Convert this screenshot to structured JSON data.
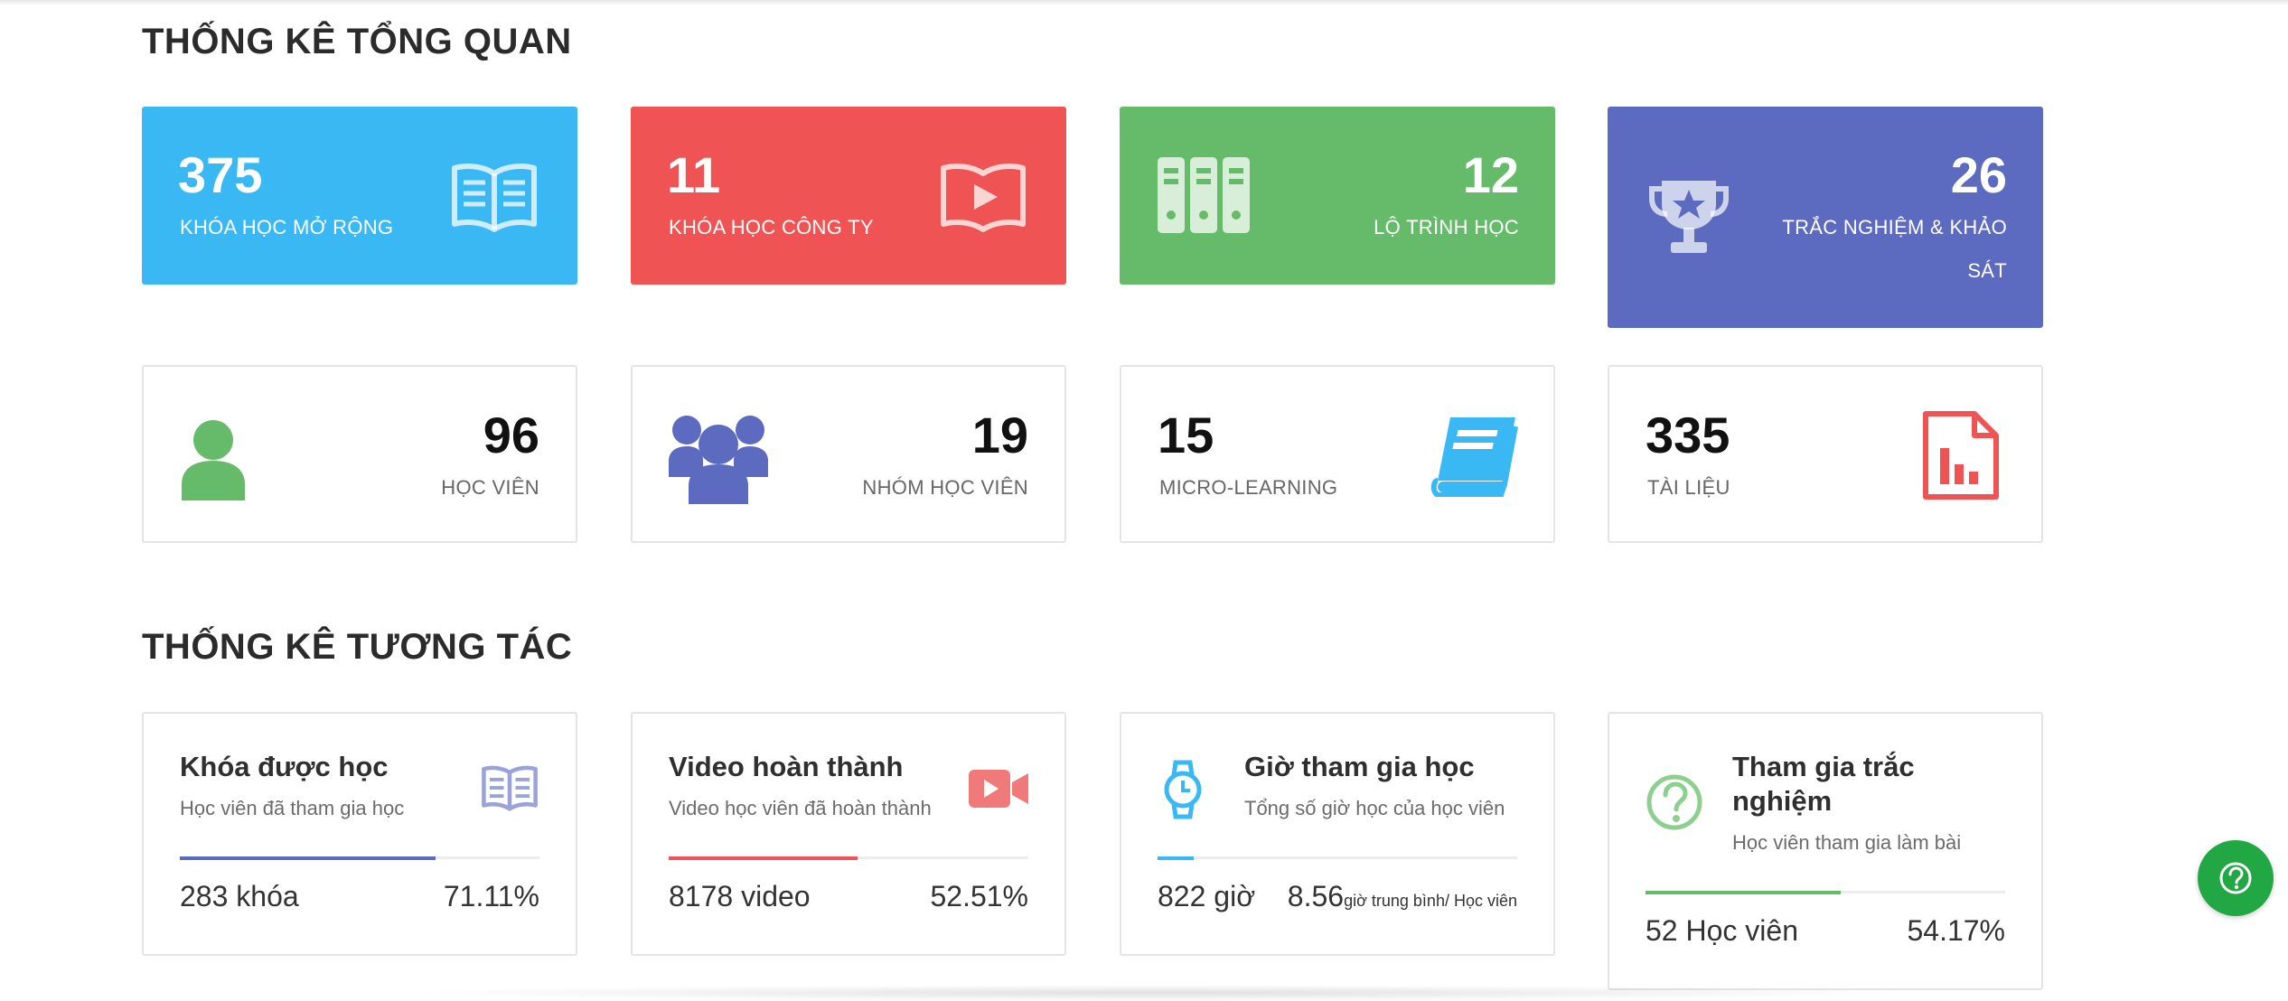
{
  "overview": {
    "title": "THỐNG KÊ TỔNG QUAN",
    "cards": [
      {
        "value": "375",
        "label": "KHÓA HỌC MỞ RỘNG",
        "color": "#3ab8f3",
        "icon": "open-book-icon"
      },
      {
        "value": "11",
        "label": "KHÓA HỌC CÔNG TY",
        "color": "#ef5353",
        "icon": "video-book-icon"
      },
      {
        "value": "12",
        "label": "LỘ TRÌNH HỌC",
        "color": "#66bb6a",
        "icon": "binders-icon"
      },
      {
        "value": "26",
        "label_line1": "TRẮC NGHIỆM & KHẢO",
        "label_line2": "SÁT",
        "color": "#5c6bc0",
        "icon": "trophy-icon"
      }
    ],
    "stats": [
      {
        "value": "96",
        "label": "HỌC VIÊN",
        "color": "#66bb6a",
        "icon": "user-icon"
      },
      {
        "value": "19",
        "label": "NHÓM HỌC VIÊN",
        "color": "#5c6bc0",
        "icon": "users-group-icon"
      },
      {
        "value": "15",
        "label": "MICRO-LEARNING",
        "color": "#3ab8f3",
        "icon": "book-icon"
      },
      {
        "value": "335",
        "label": "TÀI LIỆU",
        "color": "#ef5353",
        "icon": "document-chart-icon"
      }
    ]
  },
  "interaction": {
    "title": "THỐNG KÊ TƯƠNG TÁC",
    "cards": [
      {
        "title": "Khóa được học",
        "subtitle": "Học viên đã tham gia học",
        "left": "283 khóa",
        "right": "71.11%",
        "progress": 0.7111,
        "color": "#5c6bc0",
        "icon": "open-book-icon"
      },
      {
        "title": "Video hoàn thành",
        "subtitle": "Video học viên đã hoàn thành",
        "left": "8178 video",
        "right": "52.51%",
        "progress": 0.5251,
        "color": "#ef5353",
        "icon": "video-camera-icon"
      },
      {
        "title": "Giờ tham gia học",
        "subtitle": "Tổng số giờ học của học viên",
        "left": "822 giờ",
        "right_value": "8.56",
        "right_unit": "giờ trung bình/ Học viên",
        "progress": 0.1,
        "color": "#3ab8f3",
        "icon": "watch-icon"
      },
      {
        "title_line1": "Tham gia trắc",
        "title_line2": "nghiệm",
        "subtitle": "Học viên tham gia làm bài",
        "left": "52 Học viên",
        "right": "54.17%",
        "progress": 0.5417,
        "color": "#66bb6a",
        "icon": "question-circle-icon"
      }
    ]
  },
  "help": {
    "icon": "question-icon"
  }
}
